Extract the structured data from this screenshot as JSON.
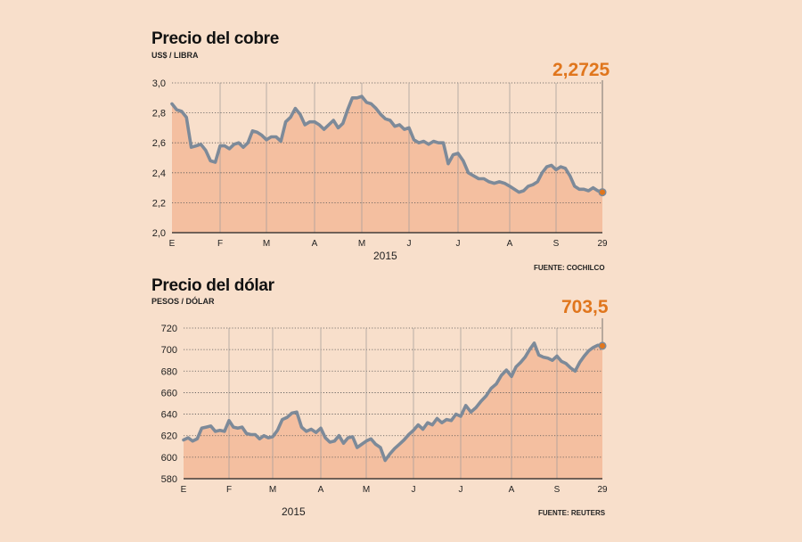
{
  "colors": {
    "background": "#f8dfcb",
    "area_fill": "#f4bfa0",
    "line": "#7d8a99",
    "highlight": "#e0761d"
  },
  "charts": [
    {
      "id": "cobre",
      "title": "Precio del cobre",
      "subtitle": "US$ / LIBRA",
      "source": "FUENTE: COCHILCO",
      "last_value_label": "2,2725",
      "year_label": "2015"
    },
    {
      "id": "dolar",
      "title": "Precio del dólar",
      "subtitle": "PESOS / DÓLAR",
      "source": "FUENTE: REUTERS",
      "last_value_label": "703,5",
      "year_label": "2015"
    }
  ],
  "chart_data": [
    {
      "type": "area",
      "title": "Precio del cobre",
      "ylabel": "US$ / LIBRA",
      "xlabel": "2015",
      "x_ticks": [
        "E",
        "F",
        "M",
        "A",
        "M",
        "J",
        "J",
        "A",
        "S",
        "29"
      ],
      "y_ticks": [
        "2,0",
        "2,2",
        "2,4",
        "2,6",
        "2,8",
        "3,0"
      ],
      "y_tick_values": [
        2.0,
        2.2,
        2.4,
        2.6,
        2.8,
        3.0
      ],
      "ylim": [
        2.0,
        3.0
      ],
      "grid": "dotted horizontal, solid vertical",
      "x": [
        0,
        0.1,
        0.2,
        0.3,
        0.4,
        0.5,
        0.6,
        0.7,
        0.8,
        0.9,
        1.0,
        1.1,
        1.2,
        1.3,
        1.4,
        1.5,
        1.6,
        1.7,
        1.8,
        1.9,
        2.0,
        2.1,
        2.2,
        2.3,
        2.4,
        2.5,
        2.6,
        2.7,
        2.8,
        2.9,
        3.0,
        3.1,
        3.2,
        3.3,
        3.4,
        3.5,
        3.6,
        3.7,
        3.8,
        3.9,
        4.0,
        4.1,
        4.2,
        4.3,
        4.4,
        4.5,
        4.6,
        4.7,
        4.8,
        4.9,
        5.0,
        5.1,
        5.2,
        5.3,
        5.4,
        5.5,
        5.6,
        5.7,
        5.8,
        5.9,
        6.0,
        6.1,
        6.2,
        6.3,
        6.4,
        6.5,
        6.6,
        6.7,
        6.8,
        6.9,
        7.0,
        7.1,
        7.2,
        7.3,
        7.4,
        7.5,
        7.6,
        7.7,
        7.8,
        7.9,
        8.0,
        8.1,
        8.2,
        8.3,
        8.4,
        8.5,
        8.6,
        8.7,
        8.8,
        8.9,
        9.0
      ],
      "values": [
        2.86,
        2.82,
        2.81,
        2.77,
        2.57,
        2.58,
        2.59,
        2.55,
        2.48,
        2.47,
        2.58,
        2.58,
        2.56,
        2.59,
        2.6,
        2.57,
        2.6,
        2.68,
        2.67,
        2.65,
        2.62,
        2.64,
        2.64,
        2.61,
        2.74,
        2.77,
        2.83,
        2.79,
        2.72,
        2.74,
        2.74,
        2.72,
        2.69,
        2.72,
        2.75,
        2.7,
        2.73,
        2.82,
        2.9,
        2.9,
        2.91,
        2.87,
        2.86,
        2.83,
        2.79,
        2.76,
        2.75,
        2.71,
        2.72,
        2.69,
        2.7,
        2.62,
        2.6,
        2.61,
        2.59,
        2.61,
        2.6,
        2.6,
        2.46,
        2.52,
        2.53,
        2.48,
        2.4,
        2.38,
        2.36,
        2.36,
        2.34,
        2.33,
        2.34,
        2.33,
        2.31,
        2.29,
        2.27,
        2.28,
        2.31,
        2.32,
        2.34,
        2.4,
        2.44,
        2.45,
        2.42,
        2.44,
        2.43,
        2.38,
        2.31,
        2.29,
        2.29,
        2.28,
        2.3,
        2.28,
        2.27
      ]
    },
    {
      "type": "area",
      "title": "Precio del dólar",
      "ylabel": "PESOS / DÓLAR",
      "xlabel": "2015",
      "x_ticks": [
        "E",
        "F",
        "M",
        "A",
        "M",
        "J",
        "J",
        "A",
        "S",
        "29"
      ],
      "y_ticks": [
        "580",
        "600",
        "620",
        "640",
        "660",
        "680",
        "700",
        "720"
      ],
      "y_tick_values": [
        580,
        600,
        620,
        640,
        660,
        680,
        700,
        720
      ],
      "ylim": [
        580,
        720
      ],
      "grid": "dotted horizontal, solid vertical",
      "x": [
        0,
        0.1,
        0.2,
        0.3,
        0.4,
        0.5,
        0.6,
        0.7,
        0.8,
        0.9,
        1.0,
        1.1,
        1.2,
        1.3,
        1.4,
        1.5,
        1.6,
        1.7,
        1.8,
        1.9,
        2.0,
        2.1,
        2.2,
        2.3,
        2.4,
        2.5,
        2.6,
        2.7,
        2.8,
        2.9,
        3.0,
        3.1,
        3.2,
        3.3,
        3.4,
        3.5,
        3.6,
        3.7,
        3.8,
        3.9,
        4.0,
        4.1,
        4.2,
        4.3,
        4.4,
        4.5,
        4.6,
        4.7,
        4.8,
        4.9,
        5.0,
        5.1,
        5.2,
        5.3,
        5.4,
        5.5,
        5.6,
        5.7,
        5.8,
        5.9,
        6.0,
        6.1,
        6.2,
        6.3,
        6.4,
        6.5,
        6.6,
        6.7,
        6.8,
        6.9,
        7.0,
        7.1,
        7.2,
        7.3,
        7.4,
        7.5,
        7.6,
        7.7,
        7.8,
        7.9,
        8.0,
        8.1,
        8.2,
        8.3,
        8.4,
        8.5,
        8.6,
        8.7,
        8.8,
        8.9,
        9.0
      ],
      "values": [
        616,
        618,
        615,
        617,
        627,
        628,
        629,
        624,
        625,
        624,
        634,
        628,
        627,
        628,
        622,
        621,
        621,
        617,
        620,
        618,
        619,
        625,
        635,
        637,
        641,
        642,
        628,
        624,
        626,
        623,
        627,
        618,
        614,
        615,
        620,
        613,
        618,
        619,
        609,
        612,
        615,
        617,
        612,
        609,
        597,
        603,
        608,
        612,
        616,
        621,
        625,
        630,
        626,
        632,
        630,
        636,
        632,
        635,
        634,
        640,
        638,
        648,
        642,
        646,
        652,
        657,
        664,
        668,
        676,
        681,
        675,
        684,
        688,
        693,
        700,
        706,
        695,
        693,
        692,
        690,
        694,
        689,
        687,
        683,
        680,
        688,
        694,
        699,
        702,
        704,
        703.5
      ]
    }
  ]
}
